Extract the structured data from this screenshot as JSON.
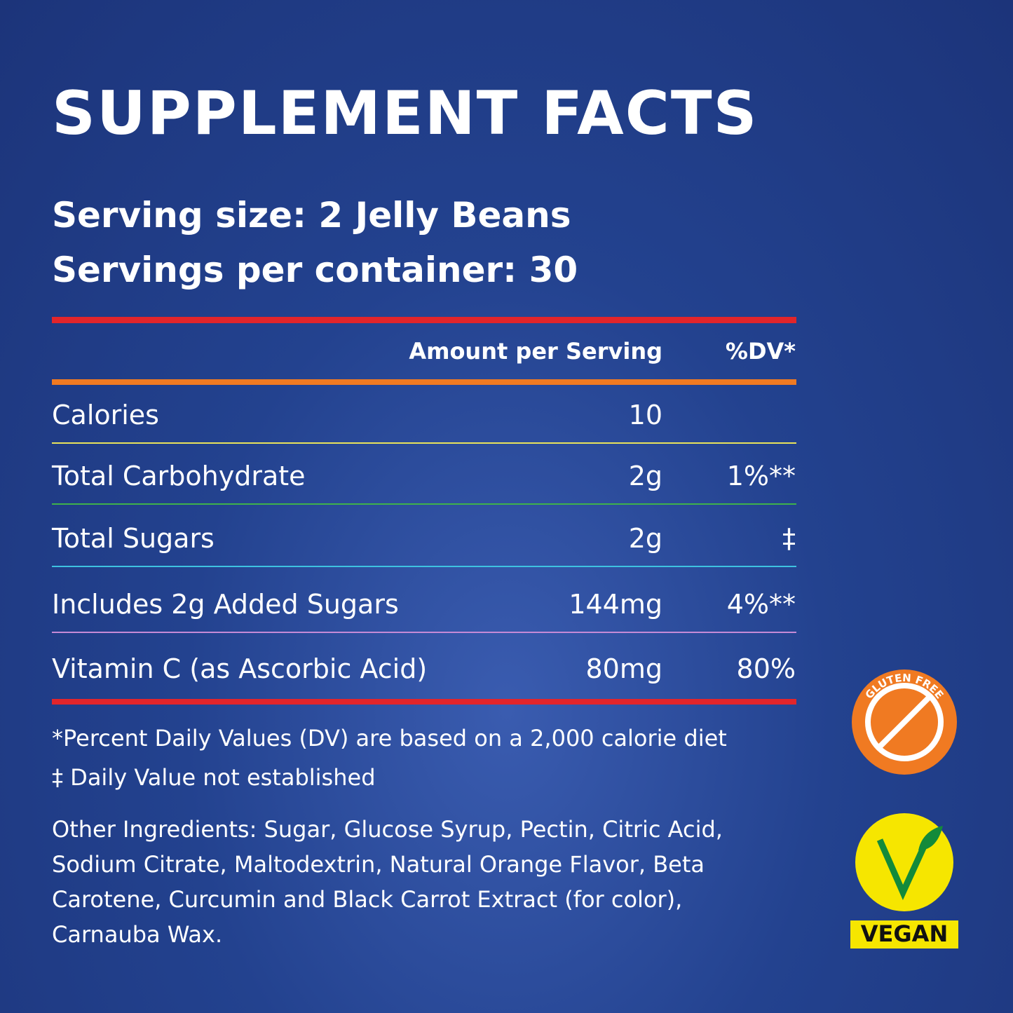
{
  "header": {
    "title": "SUPPLEMENT FACTS",
    "serving_size": "Serving size: 2 Jelly Beans",
    "servings_per_container": "Servings per container: 30"
  },
  "table": {
    "columns": [
      "Amount per Serving",
      "%DV*"
    ],
    "rows": [
      [
        "Calories",
        "10",
        ""
      ],
      [
        "Total Carbohydrate",
        "2g",
        "1%**"
      ],
      [
        "Total Sugars",
        "2g",
        "‡"
      ],
      [
        "Includes 2g Added Sugars",
        "144mg",
        "4%**"
      ],
      [
        "Vitamin C (as Ascorbic Acid)",
        "80mg",
        "80%"
      ]
    ]
  },
  "notes": [
    "*Percent Daily Values (DV) are based on a 2,000 calorie diet",
    "‡  Daily Value not established"
  ],
  "ingredients": "Other Ingredients: Sugar, Glucose Syrup, Pectin, Citric Acid, Sodium Citrate, Maltodextrin, Natural Orange Flavor, Beta Carotene, Curcumin and Black Carrot Extract (for color), Carnauba Wax.",
  "badges": {
    "gluten_free": "GLUTEN FREE",
    "vegan": "VEGAN"
  }
}
